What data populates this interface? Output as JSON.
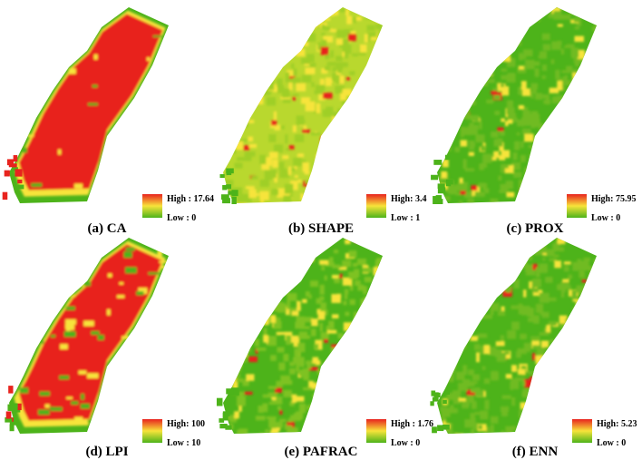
{
  "panels": [
    {
      "id": "a",
      "caption": "(a) CA",
      "legend": {
        "high": "High : 17.64",
        "low": "Low : 0"
      },
      "palette": "mostly-red",
      "colors": {
        "red": "#e8231e",
        "yellow": "#f7e43a",
        "green": "#4db31a"
      }
    },
    {
      "id": "b",
      "caption": "(b) SHAPE",
      "legend": {
        "high": "High: 3.4",
        "low": "Low : 1"
      },
      "palette": "yellow-green",
      "colors": {
        "red": "#e8231e",
        "yellow": "#f7e43a",
        "green": "#4db31a"
      }
    },
    {
      "id": "c",
      "caption": "(c) PROX",
      "legend": {
        "high": "High: 75.95",
        "low": "Low : 0"
      },
      "palette": "mostly-green",
      "colors": {
        "red": "#e8231e",
        "yellow": "#f7e43a",
        "green": "#4db31a"
      }
    },
    {
      "id": "d",
      "caption": "(d) LPI",
      "legend": {
        "high": "High: 100",
        "low": "Low : 10"
      },
      "palette": "mostly-red",
      "colors": {
        "red": "#e8231e",
        "yellow": "#f7e43a",
        "green": "#4db31a"
      }
    },
    {
      "id": "e",
      "caption": "(e) PAFRAC",
      "legend": {
        "high": "High : 1.76",
        "low": "Low : 0"
      },
      "palette": "green-patches",
      "colors": {
        "red": "#e8231e",
        "yellow": "#f7e43a",
        "green": "#4db31a"
      }
    },
    {
      "id": "f",
      "caption": "(f) ENN",
      "legend": {
        "high": "High: 5.23",
        "low": "Low : 0"
      },
      "palette": "mostly-green",
      "colors": {
        "red": "#e8231e",
        "yellow": "#f7e43a",
        "green": "#4db31a"
      }
    }
  ]
}
